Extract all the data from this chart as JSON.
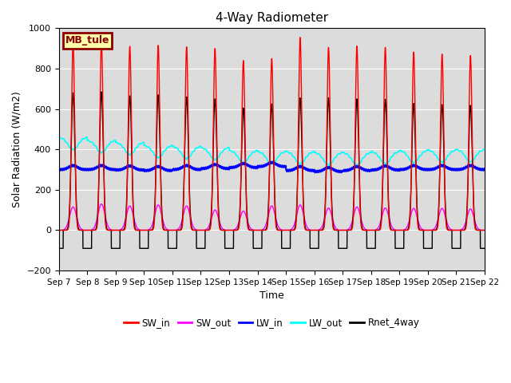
{
  "title": "4-Way Radiometer",
  "xlabel": "Time",
  "ylabel": "Solar Radiation (W/m2)",
  "ylim": [
    -200,
    1000
  ],
  "label_text": "MB_tule",
  "legend_entries": [
    "SW_in",
    "SW_out",
    "LW_in",
    "LW_out",
    "Rnet_4way"
  ],
  "colors": {
    "SW_in": "red",
    "SW_out": "magenta",
    "LW_in": "blue",
    "LW_out": "cyan",
    "Rnet_4way": "black"
  },
  "bg_color": "#dcdcdc",
  "n_days": 15,
  "SW_in_peaks": [
    930,
    935,
    910,
    915,
    908,
    900,
    840,
    850,
    955,
    905,
    912,
    905,
    882,
    872,
    865
  ],
  "SW_out_peaks": [
    115,
    130,
    120,
    125,
    120,
    100,
    95,
    120,
    125,
    110,
    115,
    110,
    108,
    108,
    105
  ],
  "LW_in_base": [
    300,
    300,
    298,
    295,
    300,
    305,
    310,
    315,
    295,
    290,
    295,
    298,
    300,
    300,
    300
  ],
  "LW_out_base": [
    460,
    445,
    435,
    420,
    415,
    410,
    395,
    390,
    390,
    385,
    385,
    390,
    395,
    398,
    400
  ],
  "Rnet_peaks": [
    680,
    685,
    665,
    670,
    660,
    650,
    605,
    625,
    655,
    655,
    650,
    648,
    628,
    622,
    618
  ],
  "Rnet_night": -90,
  "tick_labels": [
    "Sep 7",
    "Sep 8",
    "Sep 9",
    "Sep 10",
    "Sep 11",
    "Sep 12",
    "Sep 13",
    "Sep 14",
    "Sep 15",
    "Sep 16",
    "Sep 17",
    "Sep 18",
    "Sep 19",
    "Sep 20",
    "Sep 21",
    "Sep 22"
  ],
  "points_per_day": 288,
  "title_fontsize": 11,
  "label_fontsize": 9,
  "axis_fontsize": 7.5
}
